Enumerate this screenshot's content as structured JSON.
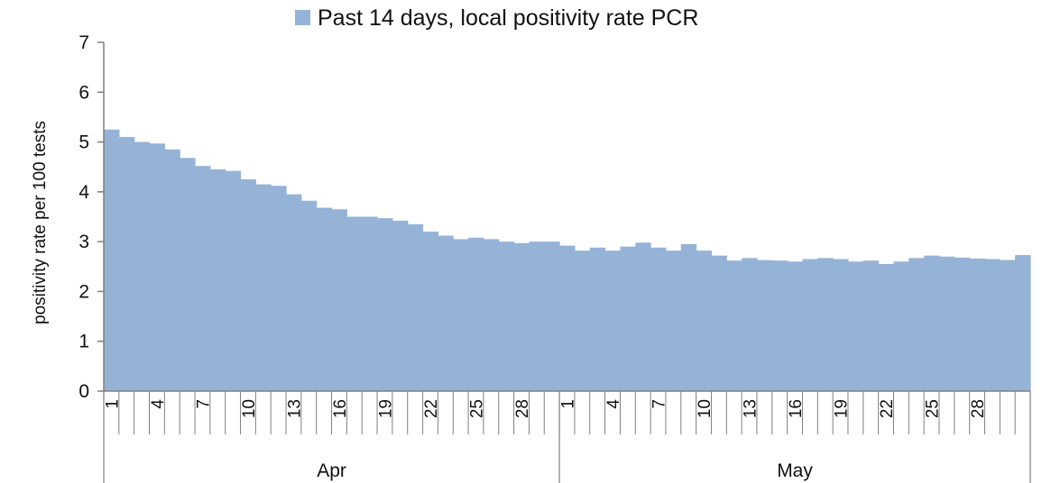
{
  "chart_data": {
    "type": "area",
    "legend_position": "top-center",
    "ylabel": "positivity rate per 100 tests",
    "ylim": [
      0,
      7
    ],
    "yticks": [
      0,
      1,
      2,
      3,
      4,
      5,
      6,
      7
    ],
    "grid": false,
    "colors": {
      "area": "#95b3d7",
      "axis": "#7f7f7f"
    },
    "months": [
      {
        "name": "Apr",
        "days": 30,
        "tick_labels": [
          "1",
          "4",
          "7",
          "10",
          "13",
          "16",
          "19",
          "22",
          "25",
          "28"
        ]
      },
      {
        "name": "May",
        "days": 31,
        "tick_labels": [
          "1",
          "4",
          "7",
          "10",
          "13",
          "16",
          "19",
          "22",
          "25",
          "28"
        ]
      }
    ],
    "series": [
      {
        "name": "Past 14 days, local positivity rate PCR",
        "values": [
          5.25,
          5.1,
          5.0,
          4.97,
          4.85,
          4.68,
          4.52,
          4.45,
          4.42,
          4.25,
          4.15,
          4.12,
          3.95,
          3.82,
          3.68,
          3.65,
          3.5,
          3.5,
          3.47,
          3.42,
          3.35,
          3.2,
          3.12,
          3.05,
          3.08,
          3.05,
          3.0,
          2.97,
          3.0,
          3.0,
          2.92,
          2.82,
          2.88,
          2.82,
          2.9,
          2.98,
          2.88,
          2.82,
          2.95,
          2.82,
          2.72,
          2.62,
          2.67,
          2.63,
          2.62,
          2.6,
          2.65,
          2.67,
          2.65,
          2.6,
          2.62,
          2.55,
          2.6,
          2.67,
          2.72,
          2.7,
          2.68,
          2.66,
          2.65,
          2.63,
          2.73
        ]
      }
    ]
  }
}
